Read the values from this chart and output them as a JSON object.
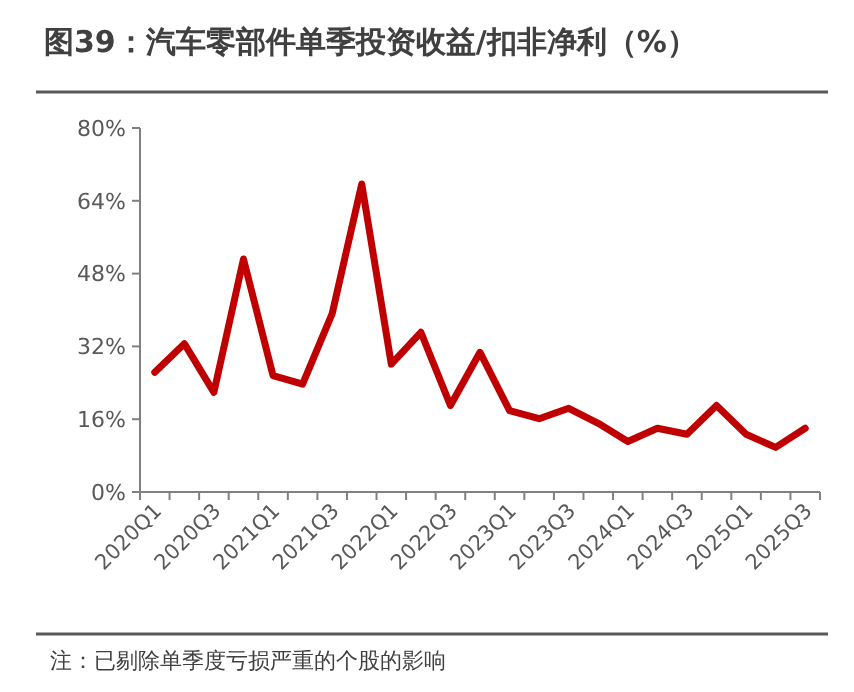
{
  "chart_data": {
    "type": "line",
    "title": "图39：汽车零部件单季投资收益/扣非净利（%）",
    "categories": [
      "2020Q1",
      null,
      "2020Q3",
      null,
      "2021Q1",
      null,
      "2021Q3",
      null,
      "2022Q1",
      null,
      "2022Q3",
      null,
      "2023Q1",
      null,
      "2023Q3",
      null,
      "2024Q1",
      null,
      "2024Q3",
      null,
      "2025Q1",
      null,
      "2025Q3"
    ],
    "series": [
      {
        "color": "#c00000",
        "values": [
          26.3,
          32.6,
          21.9,
          51.2,
          25.6,
          23.7,
          39.2,
          67.7,
          28.1,
          35.1,
          19.0,
          30.7,
          17.9,
          16.1,
          18.4,
          15.1,
          11.1,
          14.0,
          12.7,
          19.0,
          12.7,
          9.8,
          14.0
        ]
      }
    ],
    "ylim": [
      0,
      80
    ],
    "yticks": [
      {
        "value": 0,
        "label": "0%"
      },
      {
        "value": 16,
        "label": "16%"
      },
      {
        "value": 32,
        "label": "32%"
      },
      {
        "value": 48,
        "label": "48%"
      },
      {
        "value": 64,
        "label": "64%"
      },
      {
        "value": 80,
        "label": "80%"
      }
    ],
    "grid": false,
    "marker": "none",
    "line_style": "solid",
    "annotations": [
      "注：已剔除单季度亏损严重的个股的影响"
    ]
  }
}
